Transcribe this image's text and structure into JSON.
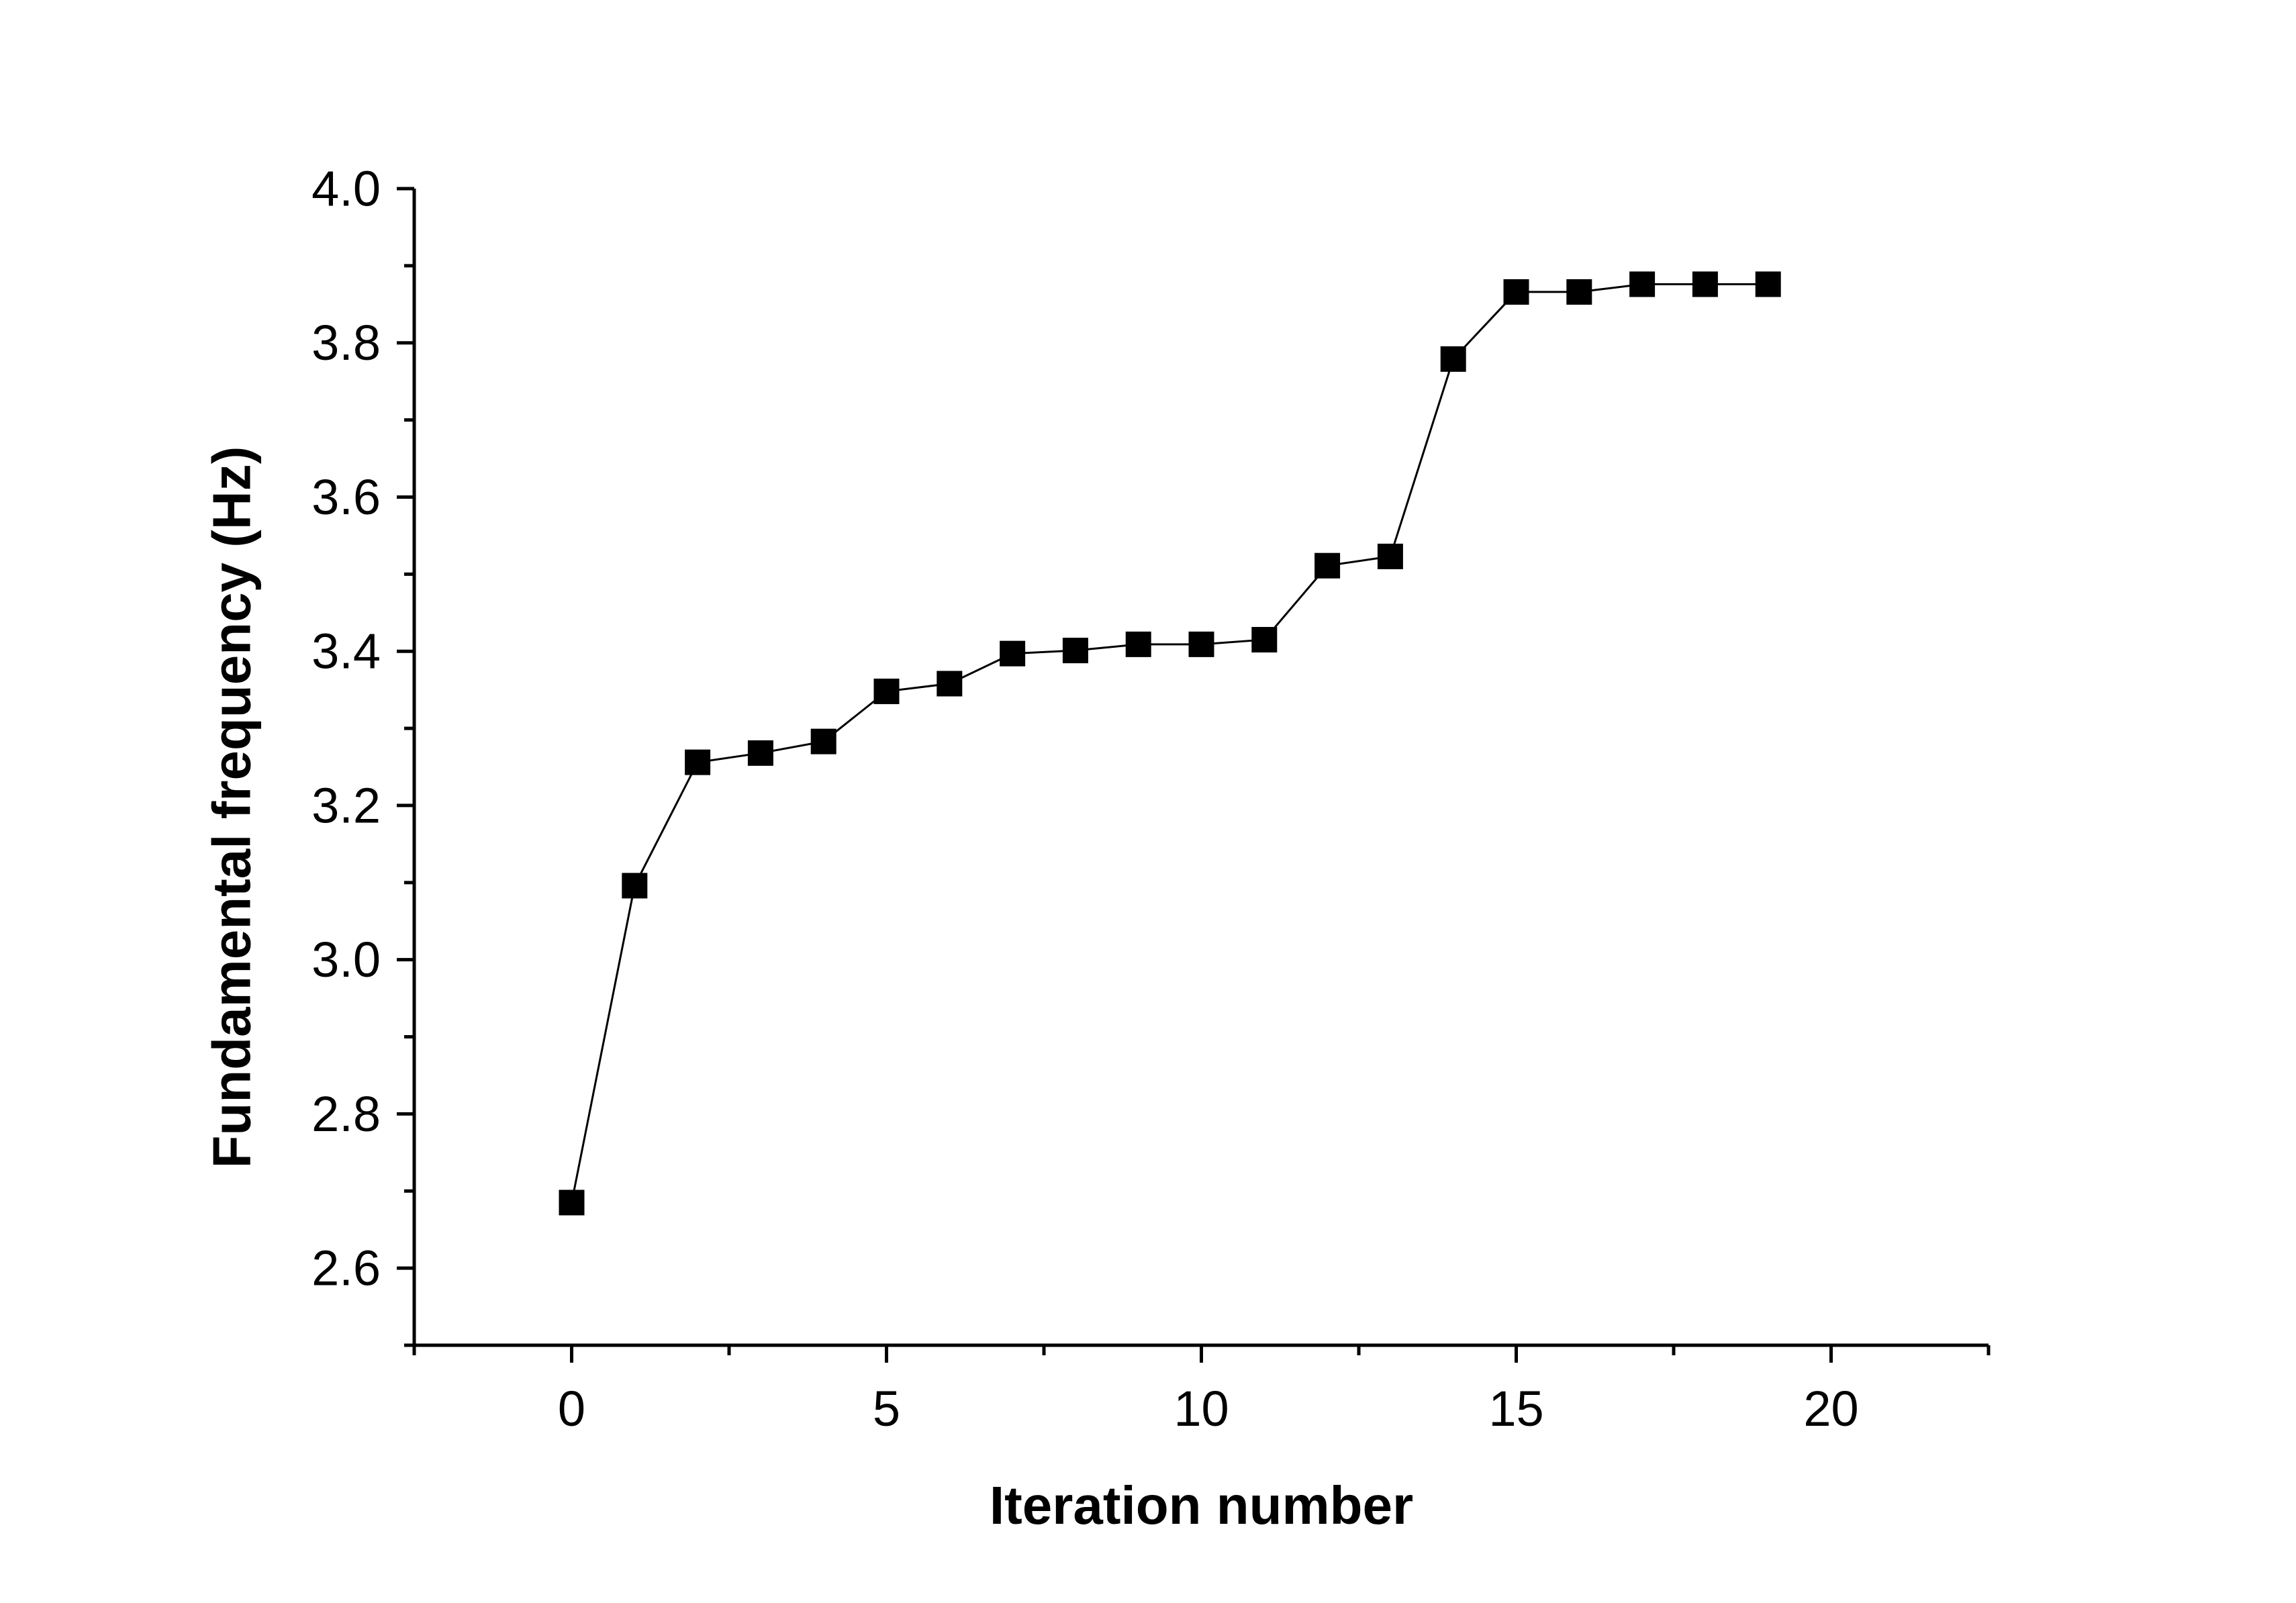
{
  "chart_data": {
    "type": "line",
    "title": "",
    "xlabel": "Iteration number",
    "ylabel": "Fundamental frequency (Hz)",
    "xlim": [
      -2.5,
      22.5
    ],
    "ylim": [
      2.5,
      4.0
    ],
    "xticks": [
      0,
      5,
      10,
      15,
      20
    ],
    "xtick_labels": [
      "0",
      "5",
      "10",
      "15",
      "20"
    ],
    "yticks": [
      2.6,
      2.8,
      3.0,
      3.2,
      3.4,
      3.6,
      3.8,
      4.0
    ],
    "ytick_labels": [
      "2.6",
      "2.8",
      "3.0",
      "3.2",
      "3.4",
      "3.6",
      "3.8",
      "4.0"
    ],
    "grid": false,
    "legend": "none",
    "marker": "square",
    "color": "#000000",
    "series": [
      {
        "x": [
          0,
          1,
          2,
          3,
          4,
          5,
          6,
          7,
          8,
          9,
          10,
          11,
          12,
          13,
          14,
          15,
          16,
          17,
          18,
          19
        ],
        "y": [
          2.685,
          3.096,
          3.256,
          3.268,
          3.283,
          3.348,
          3.358,
          3.397,
          3.401,
          3.409,
          3.409,
          3.415,
          3.511,
          3.523,
          3.779,
          3.866,
          3.866,
          3.876,
          3.876,
          3.876
        ]
      }
    ]
  }
}
